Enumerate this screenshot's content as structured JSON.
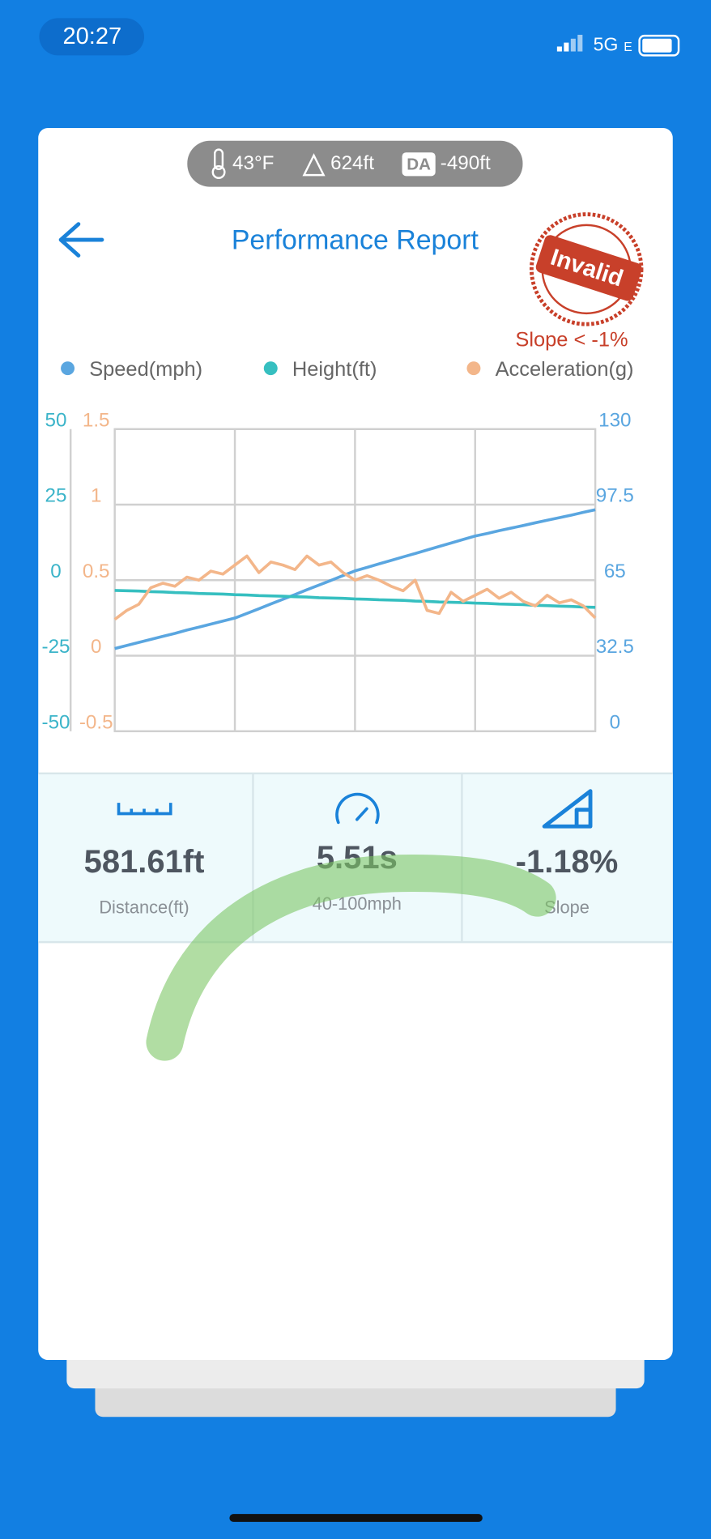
{
  "status_bar": {
    "time": "20:27",
    "network": "5G",
    "network_sub": "E"
  },
  "conditions": {
    "temperature": "43°F",
    "elevation": "624ft",
    "da_badge": "DA",
    "density_altitude": "-490ft"
  },
  "header": {
    "title": "Performance Report",
    "stamp": "Invalid",
    "stamp_note": "Slope < -1%"
  },
  "chart_data": {
    "type": "line",
    "series": [
      {
        "name": "Speed(mph)",
        "color": "#5aa6e0",
        "axis": "y2",
        "values": [
          35.6,
          36.9,
          38.2,
          39.5,
          40.8,
          42.1,
          43.5,
          44.8,
          46.1,
          47.4,
          48.7,
          50.7,
          52.7,
          54.8,
          56.8,
          58.8,
          60.9,
          62.9,
          64.9,
          67.0,
          69.0,
          70.5,
          72.0,
          73.5,
          75.0,
          76.5,
          78.0,
          79.5,
          81.0,
          82.5,
          84.0,
          85.1,
          86.3,
          87.4,
          88.5,
          89.7,
          90.8,
          91.9,
          93.0,
          94.2,
          95.3
        ]
      },
      {
        "name": "Height(ft)",
        "color": "#36bfc0",
        "axis": "y",
        "values": [
          -3.4,
          -3.5,
          -3.6,
          -3.8,
          -3.9,
          -4.1,
          -4.2,
          -4.4,
          -4.5,
          -4.6,
          -4.8,
          -4.9,
          -5.1,
          -5.2,
          -5.3,
          -5.5,
          -5.6,
          -5.8,
          -5.9,
          -6.0,
          -6.2,
          -6.3,
          -6.5,
          -6.6,
          -6.7,
          -6.9,
          -7.0,
          -7.2,
          -7.3,
          -7.4,
          -7.6,
          -7.7,
          -7.9,
          -8.0,
          -8.1,
          -8.3,
          -8.4,
          -8.6,
          -8.7,
          -8.9,
          -9.0
        ]
      },
      {
        "name": "Acceleration(g)",
        "color": "#f3b68a",
        "axis": "y3",
        "values": [
          0.24,
          0.3,
          0.34,
          0.45,
          0.48,
          0.46,
          0.52,
          0.5,
          0.56,
          0.54,
          0.6,
          0.66,
          0.55,
          0.62,
          0.6,
          0.57,
          0.66,
          0.6,
          0.62,
          0.55,
          0.5,
          0.53,
          0.5,
          0.46,
          0.43,
          0.5,
          0.3,
          0.28,
          0.42,
          0.36,
          0.4,
          0.44,
          0.38,
          0.42,
          0.36,
          0.33,
          0.4,
          0.35,
          0.37,
          0.33,
          0.25
        ]
      }
    ],
    "ylim": [
      -50,
      50
    ],
    "yticks": [
      -50,
      -25,
      0,
      25,
      50
    ],
    "y3lim": [
      -0.5,
      1.5
    ],
    "y3ticks": [
      -0.5,
      0,
      0.5,
      1,
      1.5
    ],
    "y2lim": [
      0,
      130
    ],
    "y2ticks": [
      0,
      32.5,
      65,
      97.5,
      130
    ],
    "grid": true
  },
  "stats": [
    {
      "value": "581.61ft",
      "label": "Distance(ft)"
    },
    {
      "value": "5.51s",
      "label": "40-100mph"
    },
    {
      "value": "-1.18%",
      "label": "Slope"
    }
  ]
}
